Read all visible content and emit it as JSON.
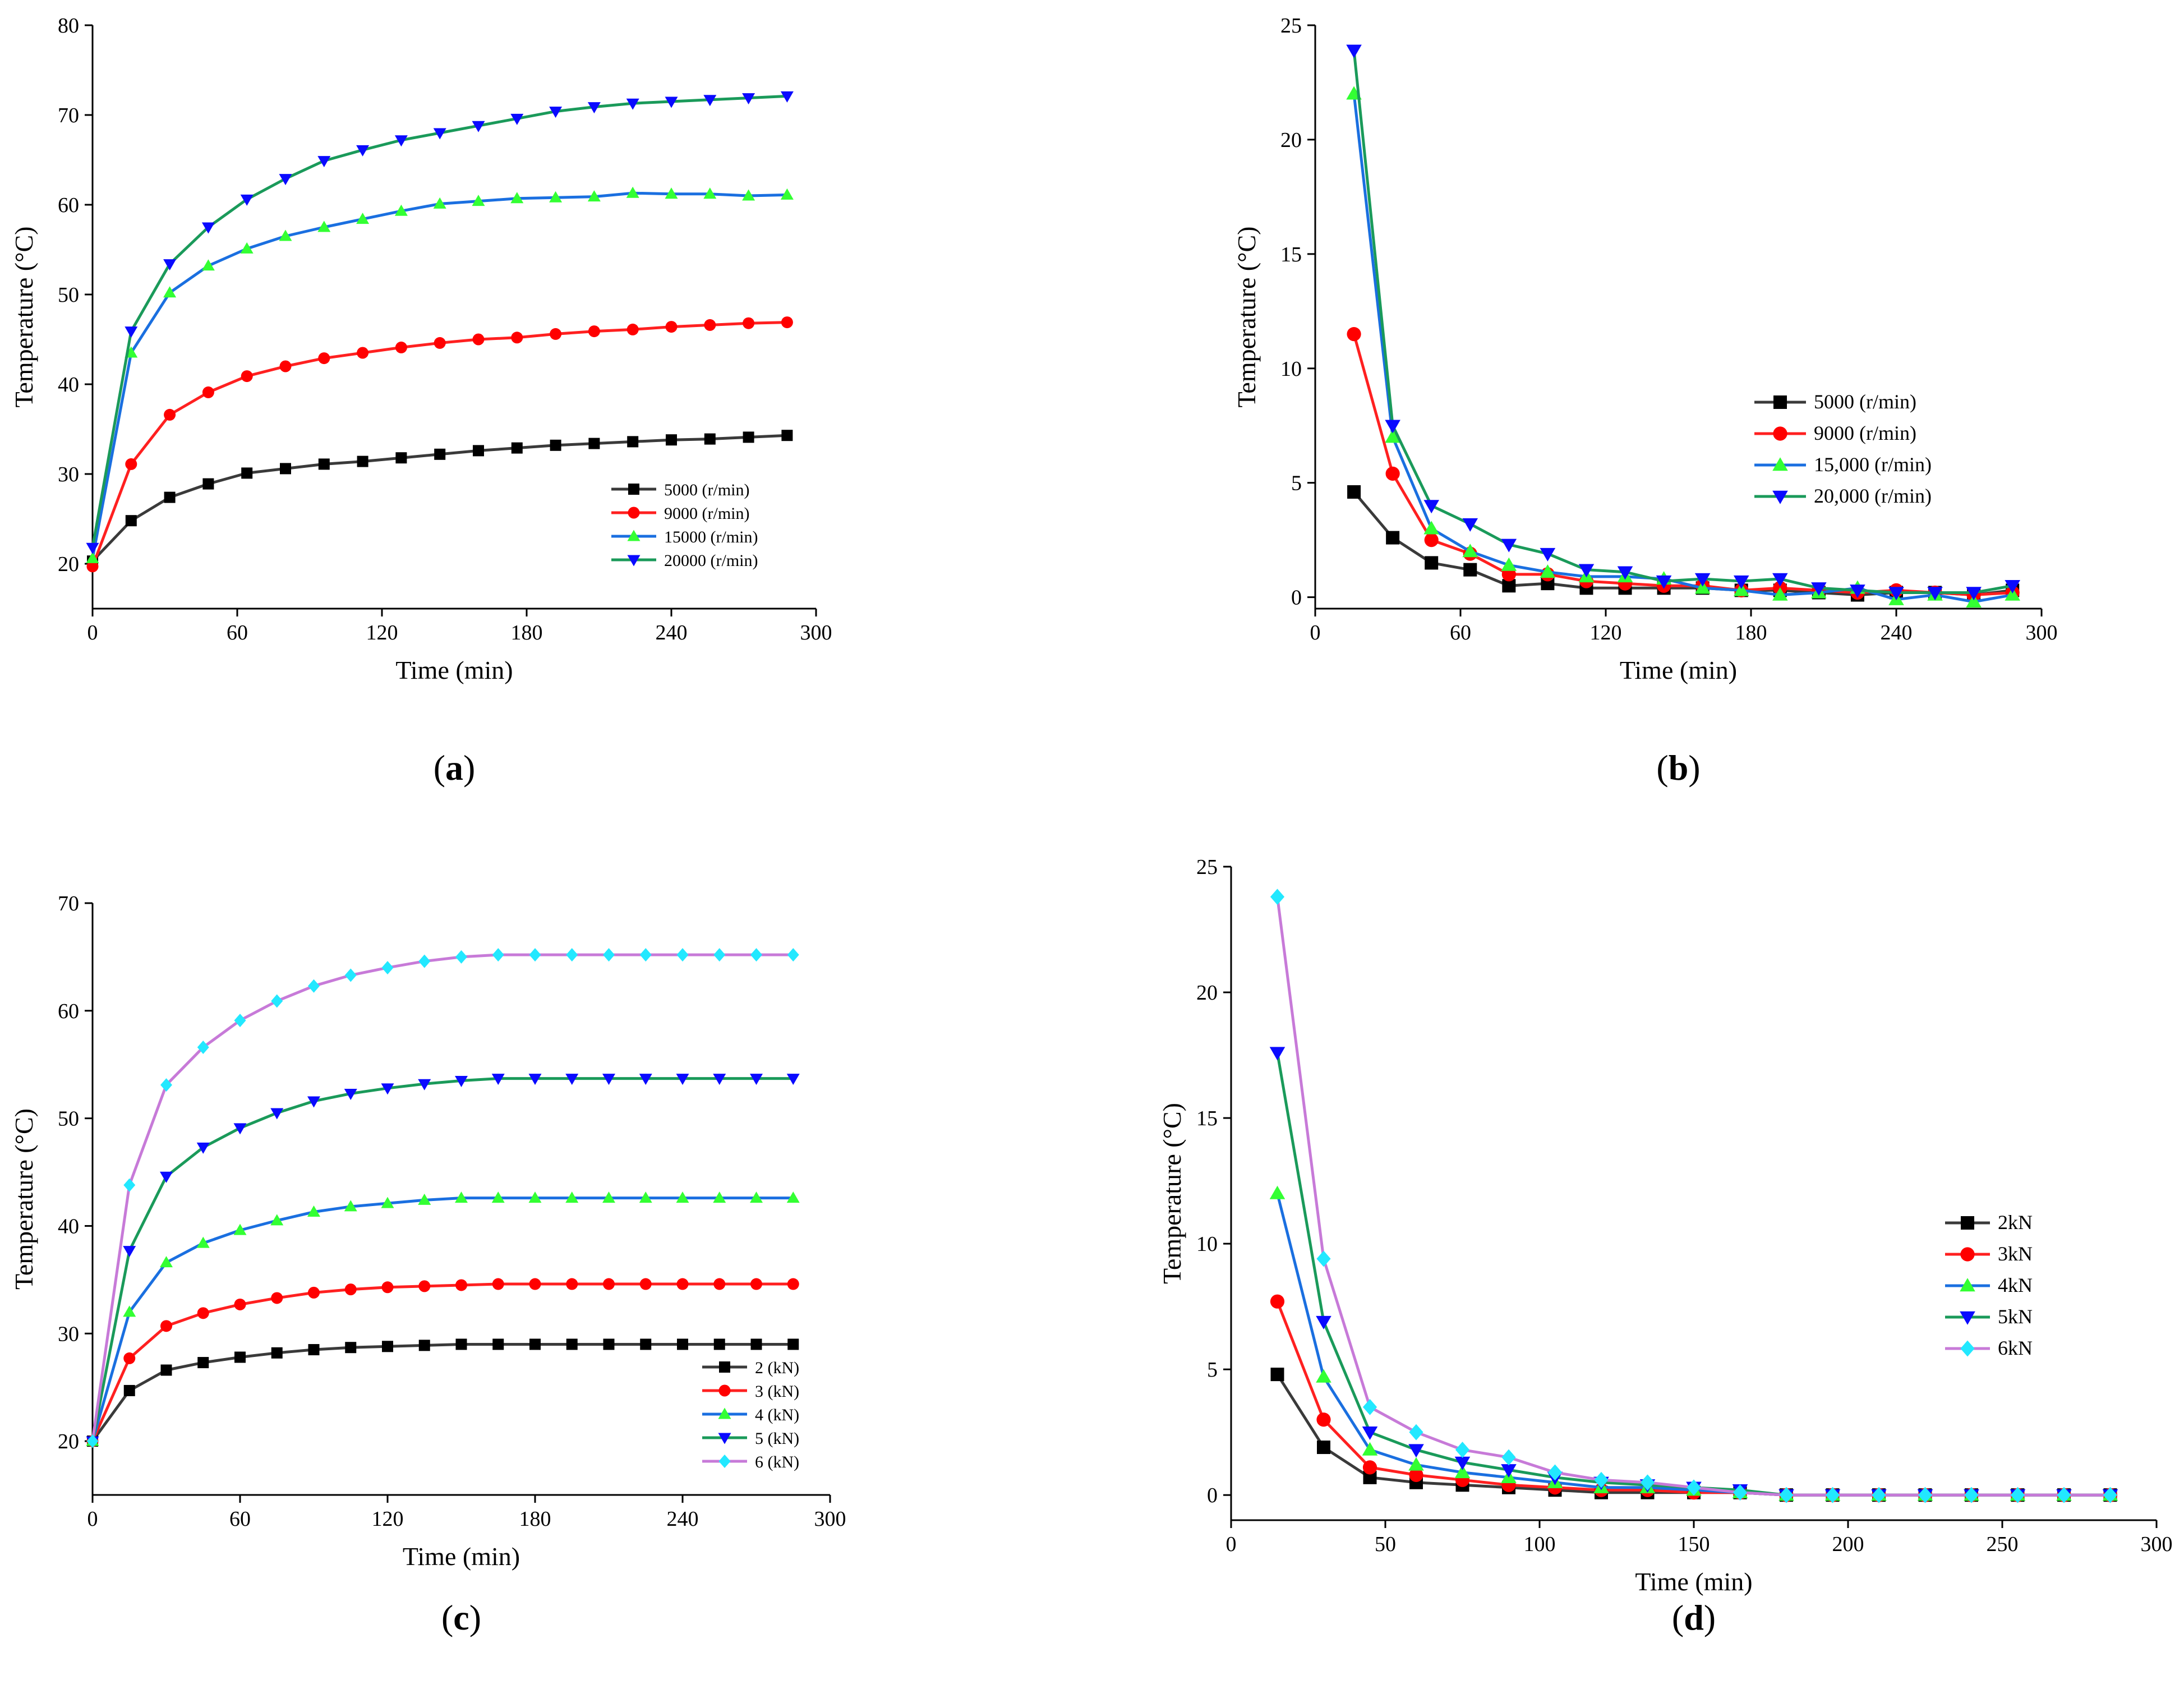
{
  "figure": {
    "panel_labels": [
      "(a)",
      "(b)",
      "(c)",
      "(d)"
    ]
  },
  "chart_data": [
    {
      "id": "a",
      "type": "line",
      "title": "",
      "xlabel": "Time (min)",
      "ylabel": "Temperature (°C)",
      "xlim": [
        0,
        300
      ],
      "ylim": [
        15,
        80
      ],
      "xticks": [
        0,
        60,
        120,
        180,
        240,
        300
      ],
      "yticks": [
        20,
        30,
        40,
        50,
        60,
        70,
        80
      ],
      "legend_position": "bottom-right",
      "legend_size": "small",
      "x": [
        0,
        16,
        32,
        48,
        64,
        80,
        96,
        112,
        128,
        144,
        160,
        176,
        192,
        208,
        224,
        240,
        256,
        272,
        288
      ],
      "series": [
        {
          "name": "5000 (r/min)",
          "color": "#3a3a3a",
          "marker": "square",
          "marker_color": "#000000",
          "values": [
            20.3,
            24.8,
            27.4,
            28.9,
            30.1,
            30.6,
            31.1,
            31.4,
            31.8,
            32.2,
            32.6,
            32.9,
            33.2,
            33.4,
            33.6,
            33.8,
            33.9,
            34.1,
            34.3
          ]
        },
        {
          "name": "9000 (r/min)",
          "color": "#ff2020",
          "marker": "circle",
          "marker_color": "#ff0000",
          "values": [
            19.7,
            31.1,
            36.6,
            39.1,
            40.9,
            42.0,
            42.9,
            43.5,
            44.1,
            44.6,
            45.0,
            45.2,
            45.6,
            45.9,
            46.1,
            46.4,
            46.6,
            46.8,
            46.9
          ]
        },
        {
          "name": "15000 (r/min)",
          "color": "#1a6fe0",
          "marker": "triangle-up",
          "marker_color": "#33ff33",
          "values": [
            20.6,
            43.5,
            50.2,
            53.2,
            55.1,
            56.5,
            57.5,
            58.4,
            59.3,
            60.1,
            60.4,
            60.7,
            60.8,
            60.9,
            61.3,
            61.2,
            61.2,
            61.0,
            61.1
          ]
        },
        {
          "name": "20000 (r/min)",
          "color": "#1a9a5a",
          "marker": "triangle-down",
          "marker_color": "#0a0aff",
          "values": [
            21.8,
            45.9,
            53.4,
            57.5,
            60.6,
            62.9,
            64.9,
            66.1,
            67.2,
            68.0,
            68.8,
            69.6,
            70.4,
            70.9,
            71.3,
            71.5,
            71.7,
            71.9,
            72.1
          ]
        }
      ]
    },
    {
      "id": "b",
      "type": "line",
      "title": "",
      "xlabel": "Time (min)",
      "ylabel": "Temperature (°C)",
      "xlim": [
        0,
        300
      ],
      "ylim": [
        -0.5,
        25
      ],
      "xticks": [
        0,
        60,
        120,
        180,
        240,
        300
      ],
      "yticks": [
        0,
        5,
        10,
        15,
        20,
        25
      ],
      "legend_position": "center-right",
      "legend_size": "large",
      "x": [
        16,
        32,
        48,
        64,
        80,
        96,
        112,
        128,
        144,
        160,
        176,
        192,
        208,
        224,
        240,
        256,
        272,
        288
      ],
      "series": [
        {
          "name": "5000 (r/min)",
          "color": "#3a3a3a",
          "marker": "square",
          "marker_color": "#000000",
          "values": [
            4.6,
            2.6,
            1.5,
            1.2,
            0.5,
            0.6,
            0.4,
            0.4,
            0.4,
            0.4,
            0.3,
            0.3,
            0.2,
            0.1,
            0.2,
            0.2,
            0.1,
            0.3
          ]
        },
        {
          "name": "9000 (r/min)",
          "color": "#ff2020",
          "marker": "circle",
          "marker_color": "#ff0000",
          "values": [
            11.5,
            5.4,
            2.5,
            1.9,
            1.0,
            1.0,
            0.7,
            0.6,
            0.5,
            0.5,
            0.3,
            0.4,
            0.3,
            0.2,
            0.3,
            0.2,
            0.1,
            0.2
          ]
        },
        {
          "name": "15,000 (r/min)",
          "color": "#1a6fe0",
          "marker": "triangle-up",
          "marker_color": "#33ff33",
          "values": [
            22.0,
            7.0,
            3.0,
            2.0,
            1.4,
            1.1,
            0.9,
            0.9,
            0.8,
            0.4,
            0.3,
            0.1,
            0.2,
            0.4,
            -0.1,
            0.1,
            -0.2,
            0.1
          ]
        },
        {
          "name": "20,000 (r/min)",
          "color": "#1a9a5a",
          "marker": "triangle-down",
          "marker_color": "#0a0aff",
          "values": [
            23.9,
            7.5,
            4.0,
            3.2,
            2.3,
            1.9,
            1.2,
            1.1,
            0.7,
            0.8,
            0.7,
            0.8,
            0.4,
            0.3,
            0.2,
            0.2,
            0.2,
            0.5
          ]
        }
      ]
    },
    {
      "id": "c",
      "type": "line",
      "title": "",
      "xlabel": "Time (min)",
      "ylabel": "Temperature (°C)",
      "xlim": [
        0,
        300
      ],
      "ylim": [
        15,
        70
      ],
      "xticks": [
        0,
        60,
        120,
        180,
        240,
        300
      ],
      "yticks": [
        20,
        30,
        40,
        50,
        60,
        70
      ],
      "legend_position": "bottom-right",
      "legend_size": "small",
      "x": [
        0,
        15,
        30,
        45,
        60,
        75,
        90,
        105,
        120,
        135,
        150,
        165,
        180,
        195,
        210,
        225,
        240,
        255,
        270,
        285
      ],
      "series": [
        {
          "name": "2 (kN)",
          "color": "#3a3a3a",
          "marker": "square",
          "marker_color": "#000000",
          "values": [
            20.0,
            24.7,
            26.6,
            27.3,
            27.8,
            28.2,
            28.5,
            28.7,
            28.8,
            28.9,
            29.0,
            29.0,
            29.0,
            29.0,
            29.0,
            29.0,
            29.0,
            29.0,
            29.0,
            29.0
          ]
        },
        {
          "name": "3 (kN)",
          "color": "#ff2020",
          "marker": "circle",
          "marker_color": "#ff0000",
          "values": [
            20.0,
            27.7,
            30.7,
            31.9,
            32.7,
            33.3,
            33.8,
            34.1,
            34.3,
            34.4,
            34.5,
            34.6,
            34.6,
            34.6,
            34.6,
            34.6,
            34.6,
            34.6,
            34.6,
            34.6
          ]
        },
        {
          "name": "4 (kN)",
          "color": "#1a6fe0",
          "marker": "triangle-up",
          "marker_color": "#33ff33",
          "values": [
            20.0,
            32.0,
            36.6,
            38.4,
            39.6,
            40.5,
            41.3,
            41.8,
            42.1,
            42.4,
            42.6,
            42.6,
            42.6,
            42.6,
            42.6,
            42.6,
            42.6,
            42.6,
            42.6,
            42.6
          ]
        },
        {
          "name": "5 (kN)",
          "color": "#1a9a5a",
          "marker": "triangle-down",
          "marker_color": "#0a0aff",
          "values": [
            20.0,
            37.7,
            44.6,
            47.3,
            49.1,
            50.5,
            51.6,
            52.3,
            52.8,
            53.2,
            53.5,
            53.7,
            53.7,
            53.7,
            53.7,
            53.7,
            53.7,
            53.7,
            53.7,
            53.7
          ]
        },
        {
          "name": "6 (kN)",
          "color": "#c77ad8",
          "marker": "diamond",
          "marker_color": "#22e8ff",
          "values": [
            20.0,
            43.8,
            53.1,
            56.6,
            59.1,
            60.9,
            62.3,
            63.3,
            64.0,
            64.6,
            65.0,
            65.2,
            65.2,
            65.2,
            65.2,
            65.2,
            65.2,
            65.2,
            65.2,
            65.2
          ]
        }
      ]
    },
    {
      "id": "d",
      "type": "line",
      "title": "",
      "xlabel": "Time (min)",
      "ylabel": "Temperature (°C)",
      "xlim": [
        0,
        300
      ],
      "ylim": [
        -1,
        25
      ],
      "xticks": [
        0,
        50,
        100,
        150,
        200,
        250,
        300
      ],
      "yticks": [
        0,
        5,
        10,
        15,
        20,
        25
      ],
      "legend_position": "center-right",
      "legend_size": "large",
      "x": [
        15,
        30,
        45,
        60,
        75,
        90,
        105,
        120,
        135,
        150,
        165,
        180,
        195,
        210,
        225,
        240,
        255,
        270,
        285
      ],
      "series": [
        {
          "name": "2kN",
          "color": "#3a3a3a",
          "marker": "square",
          "marker_color": "#000000",
          "values": [
            4.8,
            1.9,
            0.7,
            0.5,
            0.4,
            0.3,
            0.2,
            0.1,
            0.1,
            0.1,
            0.1,
            0,
            0,
            0,
            0,
            0,
            0,
            0,
            0
          ]
        },
        {
          "name": "3kN",
          "color": "#ff2020",
          "marker": "circle",
          "marker_color": "#ff0000",
          "values": [
            7.7,
            3.0,
            1.1,
            0.8,
            0.6,
            0.4,
            0.3,
            0.2,
            0.2,
            0.1,
            0.1,
            0,
            0,
            0,
            0,
            0,
            0,
            0,
            0
          ]
        },
        {
          "name": "4kN",
          "color": "#1a6fe0",
          "marker": "triangle-up",
          "marker_color": "#33ff33",
          "values": [
            12.0,
            4.7,
            1.8,
            1.2,
            0.9,
            0.7,
            0.5,
            0.3,
            0.3,
            0.2,
            0.1,
            0,
            0,
            0,
            0,
            0,
            0,
            0,
            0
          ]
        },
        {
          "name": "5kN",
          "color": "#1a9a5a",
          "marker": "triangle-down",
          "marker_color": "#0a0aff",
          "values": [
            17.6,
            6.9,
            2.5,
            1.8,
            1.3,
            1.0,
            0.7,
            0.5,
            0.4,
            0.3,
            0.2,
            0,
            0,
            0,
            0,
            0,
            0,
            0,
            0
          ]
        },
        {
          "name": "6kN",
          "color": "#c77ad8",
          "marker": "diamond",
          "marker_color": "#22e8ff",
          "values": [
            23.8,
            9.4,
            3.5,
            2.5,
            1.8,
            1.5,
            0.9,
            0.6,
            0.5,
            0.3,
            0.1,
            0,
            0,
            0,
            0,
            0,
            0,
            0,
            0
          ]
        }
      ]
    }
  ]
}
